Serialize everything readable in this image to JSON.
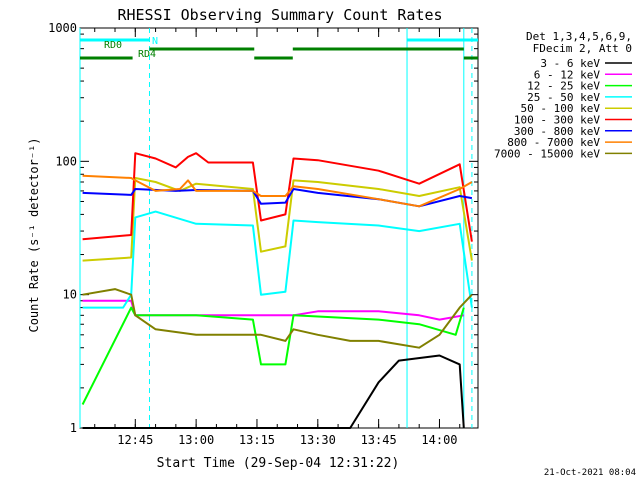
{
  "chart_data": {
    "type": "line",
    "title": "RHESSI Observing Summary Count Rates",
    "xlabel": "Start Time (29-Sep-04 12:31:22)",
    "ylabel": "Count Rate (s⁻¹ detector⁻¹)",
    "yscale": "log",
    "ylim": [
      1,
      1000
    ],
    "xlim": [
      "12:31:22",
      "14:09:30"
    ],
    "yticks": [
      "1",
      "10",
      "100",
      "1000"
    ],
    "xticks": [
      "12:45",
      "13:00",
      "13:15",
      "13:30",
      "13:45",
      "14:00"
    ],
    "grid": false,
    "legend_position": "top-right",
    "legend_header": [
      "Det 1,3,4,5,6,9,",
      "FDecim 2, Att 0"
    ],
    "footer_date": "21-Oct-2021 08:04",
    "flag_bars": [
      {
        "label": "N",
        "color": "#00ffff",
        "segments": [
          [
            "12:31:22",
            "12:48:30"
          ],
          [
            "13:52:00",
            "14:09:30"
          ]
        ]
      },
      {
        "label": "RD0",
        "color": "#008000",
        "segments": [
          [
            "12:48:30",
            "13:14:20"
          ],
          [
            "13:23:50",
            "14:06:00"
          ]
        ]
      },
      {
        "label": "RD4",
        "color": "#008000",
        "segments": [
          [
            "12:31:22",
            "12:44:20"
          ],
          [
            "13:14:20",
            "13:23:50"
          ],
          [
            "14:06:00",
            "14:09:30"
          ]
        ]
      }
    ],
    "markers": [
      {
        "time": "12:31:22",
        "color": "#00ffff",
        "style": "solid"
      },
      {
        "time": "12:48:30",
        "color": "#00ffff",
        "style": "dashed"
      },
      {
        "time": "13:52:00",
        "color": "#00ffff",
        "style": "solid"
      },
      {
        "time": "14:08:00",
        "color": "#00ffff",
        "style": "dashed"
      },
      {
        "time": "14:06:00",
        "color": "#00ffff",
        "style": "solid"
      }
    ],
    "series": [
      {
        "name": "3 - 6 keV",
        "color": "#000000",
        "x": [
          "12:32",
          "12:44",
          "12:45",
          "13:00",
          "13:15",
          "13:30",
          "13:38",
          "13:45",
          "13:50",
          "14:00",
          "14:05",
          "14:06"
        ],
        "y": [
          1,
          1,
          1,
          1,
          1,
          1,
          1,
          2.2,
          3.2,
          3.5,
          3,
          1
        ]
      },
      {
        "name": "6 - 12 keV",
        "color": "#ff00ff",
        "x": [
          "12:32",
          "12:44",
          "12:45",
          "13:00",
          "13:14",
          "13:20",
          "13:24",
          "13:30",
          "13:45",
          "13:55",
          "14:00",
          "14:06"
        ],
        "y": [
          9,
          9,
          7,
          7,
          7,
          7,
          7,
          7.5,
          7.5,
          7,
          6.5,
          7
        ]
      },
      {
        "name": "12 - 25 keV",
        "color": "#00ff00",
        "x": [
          "12:32",
          "12:44",
          "12:45",
          "13:00",
          "13:14",
          "13:16",
          "13:22",
          "13:24",
          "13:45",
          "13:55",
          "14:04",
          "14:06"
        ],
        "y": [
          1.5,
          8,
          7,
          7,
          6.5,
          3,
          3,
          7,
          6.5,
          6,
          5,
          8
        ]
      },
      {
        "name": "25 - 50 keV",
        "color": "#00ffff",
        "x": [
          "12:32",
          "12:42",
          "12:44",
          "12:45",
          "12:50",
          "13:00",
          "13:14",
          "13:16",
          "13:22",
          "13:24",
          "13:30",
          "13:45",
          "13:55",
          "14:05",
          "14:08"
        ],
        "y": [
          8,
          8,
          10,
          38,
          42,
          34,
          33,
          10,
          10.5,
          36,
          35,
          33,
          30,
          34,
          8
        ]
      },
      {
        "name": "50 - 100 keV",
        "color": "#cccc00",
        "x": [
          "12:32",
          "12:44",
          "12:45",
          "12:50",
          "12:56",
          "13:00",
          "13:14",
          "13:16",
          "13:22",
          "13:24",
          "13:30",
          "13:45",
          "13:55",
          "14:05",
          "14:08"
        ],
        "y": [
          18,
          19,
          75,
          70,
          60,
          68,
          62,
          21,
          23,
          72,
          70,
          62,
          55,
          64,
          18
        ]
      },
      {
        "name": "100 - 300 keV",
        "color": "#ff0000",
        "x": [
          "12:32",
          "12:44",
          "12:45",
          "12:50",
          "12:55",
          "12:58",
          "13:00",
          "13:03",
          "13:14",
          "13:16",
          "13:22",
          "13:24",
          "13:30",
          "13:45",
          "13:55",
          "14:05",
          "14:08"
        ],
        "y": [
          26,
          28,
          115,
          105,
          90,
          108,
          115,
          98,
          98,
          36,
          40,
          105,
          102,
          85,
          68,
          95,
          25
        ]
      },
      {
        "name": "300 - 800 keV",
        "color": "#0000ff",
        "x": [
          "12:32",
          "12:44",
          "12:45",
          "12:55",
          "13:00",
          "13:14",
          "13:16",
          "13:22",
          "13:24",
          "13:30",
          "13:45",
          "13:55",
          "14:05",
          "14:08"
        ],
        "y": [
          58,
          56,
          62,
          60,
          61,
          60,
          48,
          49,
          62,
          58,
          52,
          46,
          55,
          53
        ]
      },
      {
        "name": "800 - 7000 keV",
        "color": "#ff8000",
        "x": [
          "12:32",
          "12:44",
          "12:45",
          "12:50",
          "12:56",
          "12:58",
          "13:00",
          "13:14",
          "13:16",
          "13:22",
          "13:24",
          "13:30",
          "13:45",
          "13:55",
          "14:05",
          "14:08"
        ],
        "y": [
          78,
          75,
          72,
          60,
          62,
          72,
          60,
          60,
          55,
          55,
          65,
          62,
          52,
          46,
          62,
          70
        ]
      },
      {
        "name": "7000 - 15000 keV",
        "color": "#808000",
        "x": [
          "12:32",
          "12:40",
          "12:44",
          "12:45",
          "12:50",
          "13:00",
          "13:14",
          "13:16",
          "13:22",
          "13:24",
          "13:30",
          "13:38",
          "13:45",
          "13:55",
          "14:00",
          "14:05",
          "14:08"
        ],
        "y": [
          10,
          11,
          10,
          7,
          5.5,
          5,
          5,
          5,
          4.5,
          5.5,
          5,
          4.5,
          4.5,
          4,
          5,
          8,
          10
        ]
      }
    ]
  }
}
